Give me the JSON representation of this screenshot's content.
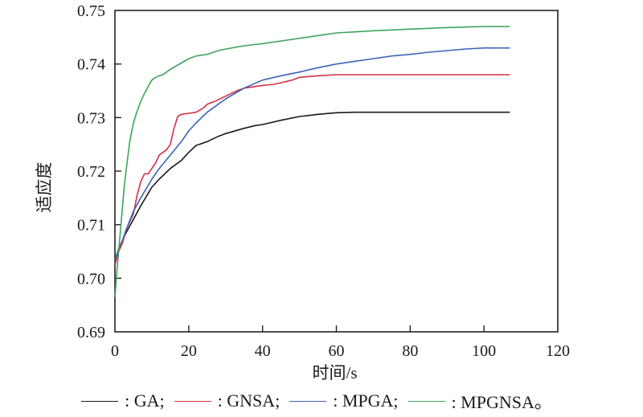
{
  "chart_data": {
    "type": "line",
    "title": "",
    "xlabel": "时间/s",
    "ylabel": "适应度",
    "xlim": [
      0,
      120
    ],
    "ylim": [
      0.69,
      0.75
    ],
    "xticks": [
      "0",
      "20",
      "40",
      "60",
      "80",
      "100",
      "120"
    ],
    "xtick_values": [
      0,
      20,
      40,
      60,
      80,
      100,
      120
    ],
    "yticks": [
      "0.69",
      "0.70",
      "0.71",
      "0.72",
      "0.73",
      "0.74",
      "0.75"
    ],
    "ytick_values": [
      0.69,
      0.7,
      0.71,
      0.72,
      0.73,
      0.74,
      0.75
    ],
    "grid": false,
    "legend_position": "bottom",
    "series": [
      {
        "name": "GA",
        "color": "#1a1a1a",
        "x": [
          0,
          1,
          2,
          3,
          5,
          7,
          10,
          12,
          15,
          18,
          20,
          22,
          25,
          28,
          30,
          33,
          35,
          38,
          40,
          45,
          50,
          55,
          60,
          65,
          75,
          107
        ],
        "y": [
          0.7025,
          0.7055,
          0.707,
          0.7085,
          0.711,
          0.7135,
          0.717,
          0.7185,
          0.7205,
          0.722,
          0.7235,
          0.7248,
          0.7255,
          0.7265,
          0.727,
          0.7276,
          0.728,
          0.7285,
          0.7287,
          0.7295,
          0.7302,
          0.7306,
          0.7309,
          0.731,
          0.731,
          0.731
        ]
      },
      {
        "name": "GNSA",
        "color": "#d62f45",
        "x": [
          0,
          1,
          2,
          3,
          4,
          5,
          6,
          7,
          8,
          9,
          10,
          11,
          12,
          13,
          14,
          15,
          16,
          17,
          18,
          20,
          22,
          24,
          25,
          27,
          30,
          33,
          35,
          38,
          40,
          43,
          45,
          48,
          50,
          55,
          60,
          70,
          107
        ],
        "y": [
          0.7025,
          0.705,
          0.7065,
          0.709,
          0.7105,
          0.712,
          0.7155,
          0.718,
          0.7195,
          0.7195,
          0.7205,
          0.7215,
          0.723,
          0.7235,
          0.724,
          0.725,
          0.728,
          0.7302,
          0.7306,
          0.7308,
          0.731,
          0.7318,
          0.7325,
          0.733,
          0.734,
          0.735,
          0.7355,
          0.7358,
          0.736,
          0.7362,
          0.7365,
          0.737,
          0.7375,
          0.7378,
          0.738,
          0.738,
          0.738
        ]
      },
      {
        "name": "MPGA",
        "color": "#3a64b8",
        "x": [
          0,
          1,
          2,
          3,
          5,
          7,
          10,
          12,
          15,
          18,
          20,
          22,
          25,
          28,
          30,
          33,
          35,
          38,
          40,
          45,
          50,
          55,
          60,
          65,
          70,
          75,
          80,
          85,
          90,
          95,
          100,
          107
        ],
        "y": [
          0.7035,
          0.7055,
          0.707,
          0.709,
          0.7125,
          0.715,
          0.7185,
          0.7205,
          0.723,
          0.7255,
          0.7275,
          0.729,
          0.731,
          0.7325,
          0.7335,
          0.7347,
          0.7355,
          0.7364,
          0.737,
          0.7378,
          0.7385,
          0.7393,
          0.74,
          0.7405,
          0.741,
          0.7415,
          0.7418,
          0.7422,
          0.7425,
          0.7428,
          0.743,
          0.743
        ]
      },
      {
        "name": "MPGNSA",
        "color": "#3ea45c",
        "x": [
          0,
          0.5,
          1,
          1.5,
          2,
          2.5,
          3,
          4,
          5,
          6,
          7,
          8,
          9,
          10,
          11,
          12,
          13,
          15,
          17,
          20,
          22,
          25,
          28,
          30,
          35,
          40,
          45,
          50,
          55,
          60,
          65,
          70,
          80,
          90,
          100,
          107
        ],
        "y": [
          0.6965,
          0.701,
          0.705,
          0.709,
          0.713,
          0.717,
          0.72,
          0.7255,
          0.729,
          0.7312,
          0.733,
          0.7345,
          0.7358,
          0.737,
          0.7375,
          0.7378,
          0.738,
          0.739,
          0.7398,
          0.741,
          0.7415,
          0.7418,
          0.7425,
          0.7428,
          0.7434,
          0.7438,
          0.7443,
          0.7448,
          0.7453,
          0.7458,
          0.746,
          0.7462,
          0.7465,
          0.7468,
          0.747,
          0.747
        ]
      }
    ]
  },
  "legend": {
    "items": [
      {
        "label": ": GA;",
        "color": "#1a1a1a"
      },
      {
        "label": ": GNSA;",
        "color": "#d62f45"
      },
      {
        "label": ": MPGA;",
        "color": "#3a64b8"
      },
      {
        "label": ": MPGNSA。",
        "color": "#3ea45c"
      }
    ]
  }
}
